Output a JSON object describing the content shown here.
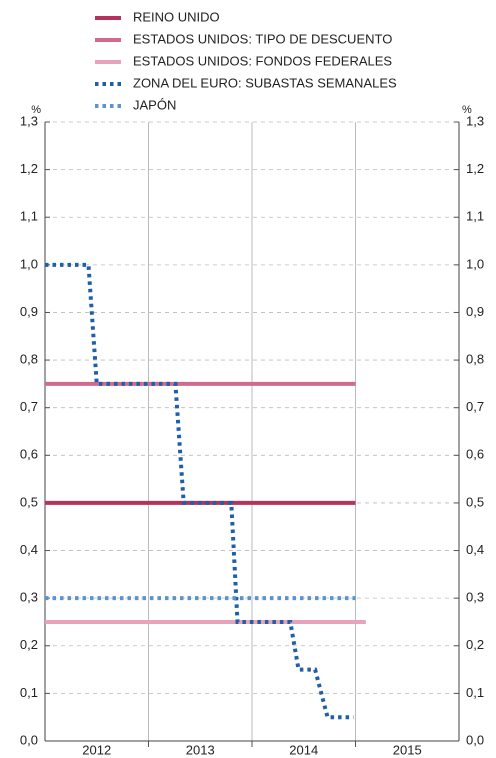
{
  "chart_data": {
    "type": "line",
    "y_unit": "%",
    "categories": [
      "2012",
      "2013",
      "2014",
      "2015"
    ],
    "xlim": [
      2012,
      2016
    ],
    "xticks": [
      2013,
      2014,
      2015
    ],
    "ylim": [
      0,
      1.3
    ],
    "yticks": [
      {
        "value": 0,
        "label": "0,0"
      },
      {
        "value": 0.1,
        "label": "0,1"
      },
      {
        "value": 0.2,
        "label": "0,2"
      },
      {
        "value": 0.3,
        "label": "0,3"
      },
      {
        "value": 0.4,
        "label": "0,4"
      },
      {
        "value": 0.5,
        "label": "0,5"
      },
      {
        "value": 0.6,
        "label": "0,6"
      },
      {
        "value": 0.7,
        "label": "0,7"
      },
      {
        "value": 0.8,
        "label": "0,8"
      },
      {
        "value": 0.9,
        "label": "0,9"
      },
      {
        "value": 1.0,
        "label": "1,0"
      },
      {
        "value": 1.1,
        "label": "1,1"
      },
      {
        "value": 1.2,
        "label": "1,2"
      },
      {
        "value": 1.3,
        "label": "1,3"
      }
    ],
    "grid": true,
    "series": [
      {
        "name": "REINO UNIDO",
        "color": "#b5325a",
        "style": "solid",
        "x": [
          2012,
          2015
        ],
        "values": [
          0.5,
          0.5
        ]
      },
      {
        "name": "ESTADOS UNIDOS: TIPO DE DESCUENTO",
        "color": "#d16b8e",
        "style": "solid",
        "x": [
          2012,
          2015
        ],
        "values": [
          0.75,
          0.75
        ]
      },
      {
        "name": "ESTADOS UNIDOS: FONDOS FEDERALES",
        "color": "#e6a3bb",
        "style": "solid",
        "x": [
          2012,
          2015.1
        ],
        "values": [
          0.25,
          0.25
        ]
      },
      {
        "name": "ZONA DEL EURO: SUBASTAS SEMANALES",
        "color": "#1f5ea8",
        "style": "dotted",
        "x": [
          2012,
          2012.42,
          2012.5,
          2013.26,
          2013.34,
          2013.8,
          2013.86,
          2014.37,
          2014.45,
          2014.61,
          2014.73,
          2014.98
        ],
        "values": [
          1.0,
          1.0,
          0.75,
          0.75,
          0.5,
          0.5,
          0.25,
          0.25,
          0.15,
          0.15,
          0.05,
          0.05
        ]
      },
      {
        "name": "JAPÓN",
        "color": "#5d93c8",
        "style": "dotted",
        "x": [
          2012,
          2015
        ],
        "values": [
          0.3,
          0.3
        ]
      }
    ]
  }
}
